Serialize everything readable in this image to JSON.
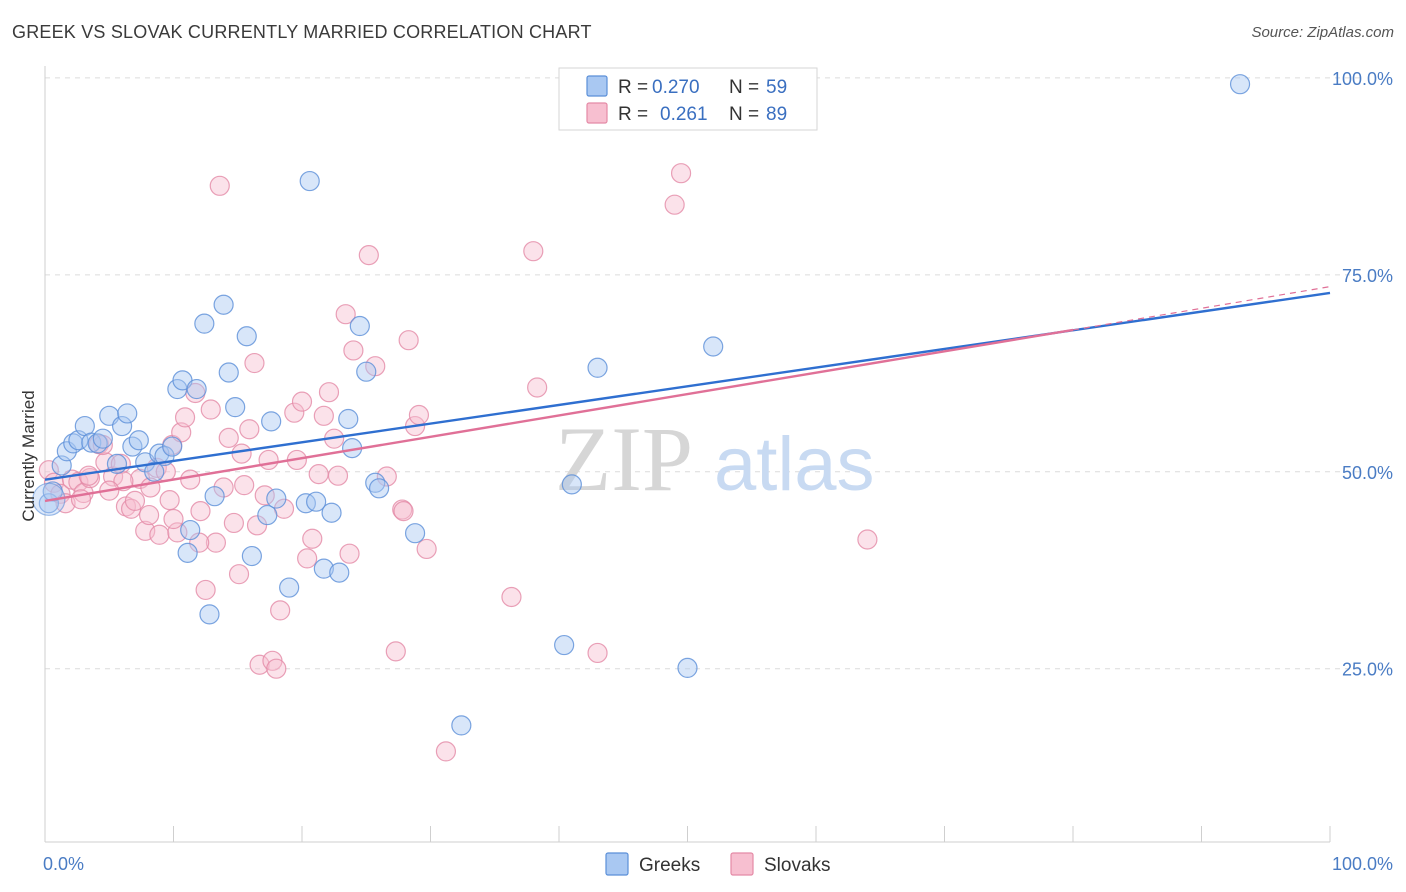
{
  "title": "GREEK VS SLOVAK CURRENTLY MARRIED CORRELATION CHART",
  "source": "Source: ZipAtlas.com",
  "watermark": {
    "zip": "ZIP",
    "atlas": "atlas"
  },
  "legend": {
    "rows": [
      {
        "r_label": "R =",
        "r_value": "0.270",
        "n_label": "N =",
        "n_value": "59",
        "color": "#a9c8f2",
        "stroke": "#5b8fd8"
      },
      {
        "r_label": "R =",
        "r_value": "0.261",
        "n_label": "N =",
        "n_value": "89",
        "color": "#f7bfd0",
        "stroke": "#e48aa6"
      }
    ]
  },
  "bottom_legend": [
    {
      "label": "Greeks",
      "color": "#a9c8f2",
      "stroke": "#5b8fd8"
    },
    {
      "label": "Slovaks",
      "color": "#f7bfd0",
      "stroke": "#e48aa6"
    }
  ],
  "chart_data": {
    "type": "scatter",
    "title": "GREEK VS SLOVAK CURRENTLY MARRIED CORRELATION CHART",
    "xlabel": "",
    "ylabel": "Currently Married",
    "xlim": [
      0,
      100
    ],
    "ylim": [
      3,
      101
    ],
    "x_tick_labels": [
      "0.0%",
      "100.0%"
    ],
    "y_tick_labels": [
      {
        "value": 25,
        "label": "25.0%"
      },
      {
        "value": 50,
        "label": "50.0%"
      },
      {
        "value": 75,
        "label": "75.0%"
      },
      {
        "value": 100,
        "label": "100.0%"
      }
    ],
    "grid": true,
    "legend_position": "top-center",
    "series": [
      {
        "name": "Greeks",
        "color": "#5b8fd8",
        "fill": "#a9c8f2",
        "trend": {
          "x": [
            0,
            100
          ],
          "y": [
            49.0,
            72.7
          ]
        },
        "points": [
          [
            0.3,
            46.0
          ],
          [
            0.6,
            47.5
          ],
          [
            1.3,
            50.8
          ],
          [
            1.7,
            52.6
          ],
          [
            2.2,
            53.6
          ],
          [
            2.6,
            54.0
          ],
          [
            3.1,
            55.8
          ],
          [
            3.6,
            53.7
          ],
          [
            4.1,
            53.6
          ],
          [
            4.5,
            54.2
          ],
          [
            5.0,
            57.1
          ],
          [
            5.6,
            51.0
          ],
          [
            6.0,
            55.8
          ],
          [
            6.4,
            57.4
          ],
          [
            6.8,
            53.2
          ],
          [
            7.3,
            54.0
          ],
          [
            7.8,
            51.2
          ],
          [
            8.5,
            50.0
          ],
          [
            8.9,
            52.3
          ],
          [
            9.3,
            52.0
          ],
          [
            9.9,
            53.2
          ],
          [
            10.3,
            60.5
          ],
          [
            10.7,
            61.6
          ],
          [
            11.1,
            39.7
          ],
          [
            11.3,
            42.6
          ],
          [
            11.8,
            60.5
          ],
          [
            12.4,
            68.8
          ],
          [
            12.8,
            31.9
          ],
          [
            13.2,
            46.9
          ],
          [
            13.9,
            71.2
          ],
          [
            14.3,
            62.6
          ],
          [
            14.8,
            58.2
          ],
          [
            15.7,
            67.2
          ],
          [
            16.1,
            39.3
          ],
          [
            17.3,
            44.5
          ],
          [
            17.6,
            56.4
          ],
          [
            18.0,
            46.6
          ],
          [
            19.0,
            35.3
          ],
          [
            20.3,
            46.0
          ],
          [
            20.6,
            86.9
          ],
          [
            21.1,
            46.2
          ],
          [
            21.7,
            37.7
          ],
          [
            22.3,
            44.8
          ],
          [
            22.9,
            37.2
          ],
          [
            23.6,
            56.7
          ],
          [
            23.9,
            53.0
          ],
          [
            24.5,
            68.5
          ],
          [
            25.0,
            62.7
          ],
          [
            25.7,
            48.6
          ],
          [
            26.0,
            47.9
          ],
          [
            28.8,
            42.2
          ],
          [
            32.4,
            17.8
          ],
          [
            40.4,
            28.0
          ],
          [
            41.0,
            48.4
          ],
          [
            43.0,
            63.2
          ],
          [
            50.0,
            25.1
          ],
          [
            52.0,
            65.9
          ],
          [
            56.7,
            99.8
          ],
          [
            93.0,
            99.2
          ]
        ]
      },
      {
        "name": "Slovaks",
        "color": "#e48aa6",
        "fill": "#f7bfd0",
        "trend": {
          "x": [
            0,
            80
          ],
          "y": [
            46.3,
            68.0
          ]
        },
        "trend_extension": {
          "x": [
            80,
            100
          ],
          "y": [
            68.0,
            73.5
          ]
        },
        "points": [
          [
            0.3,
            50.2
          ],
          [
            0.7,
            48.6
          ],
          [
            1.2,
            47.2
          ],
          [
            1.6,
            46.0
          ],
          [
            2.1,
            49.0
          ],
          [
            2.6,
            48.7
          ],
          [
            3.0,
            47.3
          ],
          [
            3.5,
            49.2
          ],
          [
            4.2,
            53.5
          ],
          [
            4.7,
            51.2
          ],
          [
            5.3,
            49.4
          ],
          [
            5.9,
            51.0
          ],
          [
            6.3,
            45.6
          ],
          [
            6.7,
            45.3
          ],
          [
            7.0,
            46.3
          ],
          [
            7.4,
            49.1
          ],
          [
            7.8,
            42.5
          ],
          [
            8.2,
            48.0
          ],
          [
            8.7,
            50.5
          ],
          [
            8.9,
            42.0
          ],
          [
            9.4,
            50.0
          ],
          [
            9.9,
            53.4
          ],
          [
            10.3,
            42.3
          ],
          [
            10.6,
            55.0
          ],
          [
            10.9,
            56.9
          ],
          [
            11.3,
            49.0
          ],
          [
            11.7,
            60.0
          ],
          [
            12.1,
            45.0
          ],
          [
            12.5,
            35.0
          ],
          [
            12.9,
            57.9
          ],
          [
            13.3,
            41.0
          ],
          [
            13.6,
            86.3
          ],
          [
            13.9,
            48.0
          ],
          [
            14.3,
            54.3
          ],
          [
            14.7,
            43.5
          ],
          [
            15.1,
            37.0
          ],
          [
            15.5,
            48.3
          ],
          [
            15.9,
            55.4
          ],
          [
            16.3,
            63.8
          ],
          [
            16.7,
            25.5
          ],
          [
            17.1,
            47.0
          ],
          [
            17.4,
            51.5
          ],
          [
            17.7,
            26.0
          ],
          [
            18.0,
            25.0
          ],
          [
            18.3,
            32.4
          ],
          [
            18.6,
            45.3
          ],
          [
            19.4,
            57.5
          ],
          [
            20.0,
            58.9
          ],
          [
            20.4,
            39.0
          ],
          [
            20.8,
            41.5
          ],
          [
            21.3,
            49.7
          ],
          [
            21.7,
            57.1
          ],
          [
            22.1,
            60.1
          ],
          [
            22.5,
            54.2
          ],
          [
            22.8,
            49.5
          ],
          [
            23.4,
            70.0
          ],
          [
            23.7,
            39.6
          ],
          [
            24.0,
            65.4
          ],
          [
            25.2,
            77.5
          ],
          [
            25.7,
            63.4
          ],
          [
            26.6,
            49.4
          ],
          [
            27.3,
            27.2
          ],
          [
            27.8,
            45.2
          ],
          [
            28.3,
            66.7
          ],
          [
            28.8,
            55.8
          ],
          [
            29.1,
            57.2
          ],
          [
            29.7,
            40.2
          ],
          [
            31.2,
            14.5
          ],
          [
            36.3,
            34.1
          ],
          [
            38.0,
            78.0
          ],
          [
            38.3,
            60.7
          ],
          [
            43.0,
            27.0
          ],
          [
            49.0,
            83.9
          ],
          [
            49.5,
            87.9
          ],
          [
            51.0,
            99.7
          ],
          [
            64.0,
            41.4
          ],
          [
            6.1,
            48.8
          ],
          [
            9.7,
            46.4
          ],
          [
            16.5,
            43.2
          ],
          [
            12.0,
            41.0
          ],
          [
            19.6,
            51.5
          ],
          [
            27.9,
            45.0
          ],
          [
            2.8,
            46.5
          ],
          [
            5.0,
            47.6
          ],
          [
            8.1,
            44.5
          ],
          [
            4.5,
            53.4
          ],
          [
            3.4,
            49.5
          ],
          [
            10.0,
            44.0
          ],
          [
            15.3,
            52.3
          ]
        ]
      }
    ]
  }
}
